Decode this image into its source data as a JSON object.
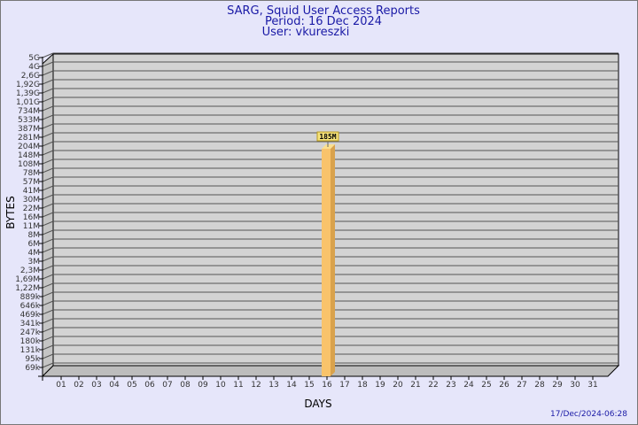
{
  "chart_data": {
    "type": "bar",
    "title": [
      "SARG, Squid User Access Reports",
      "Period: 16 Dec 2024",
      "User: vkureszki"
    ],
    "xlabel": "DAYS",
    "ylabel": "BYTES",
    "y_scale": "log-like categorical ticks",
    "yticks": [
      "5G",
      "4G",
      "2,6G",
      "1,92G",
      "1,39G",
      "1,01G",
      "734M",
      "533M",
      "387M",
      "281M",
      "204M",
      "148M",
      "108M",
      "78M",
      "57M",
      "41M",
      "30M",
      "22M",
      "16M",
      "11M",
      "8M",
      "6M",
      "4M",
      "3M",
      "2,3M",
      "1,69M",
      "1,22M",
      "889k",
      "646k",
      "469k",
      "341k",
      "247k",
      "180k",
      "131k",
      "95k",
      "69k"
    ],
    "categories": [
      "01",
      "02",
      "03",
      "04",
      "05",
      "06",
      "07",
      "08",
      "09",
      "10",
      "11",
      "12",
      "13",
      "14",
      "15",
      "16",
      "17",
      "18",
      "19",
      "20",
      "21",
      "22",
      "23",
      "24",
      "25",
      "26",
      "27",
      "28",
      "29",
      "30",
      "31"
    ],
    "bars": [
      {
        "day": "16",
        "value": "185M",
        "label": "185M"
      }
    ],
    "grid": true,
    "colors": {
      "bar": "#f9c36b",
      "bar_side": "#d9a24c",
      "wall": "#d3d3d3",
      "background": "#e6e6fa",
      "label_box": "#f5e27a"
    }
  },
  "timestamp": "17/Dec/2024-06:28"
}
